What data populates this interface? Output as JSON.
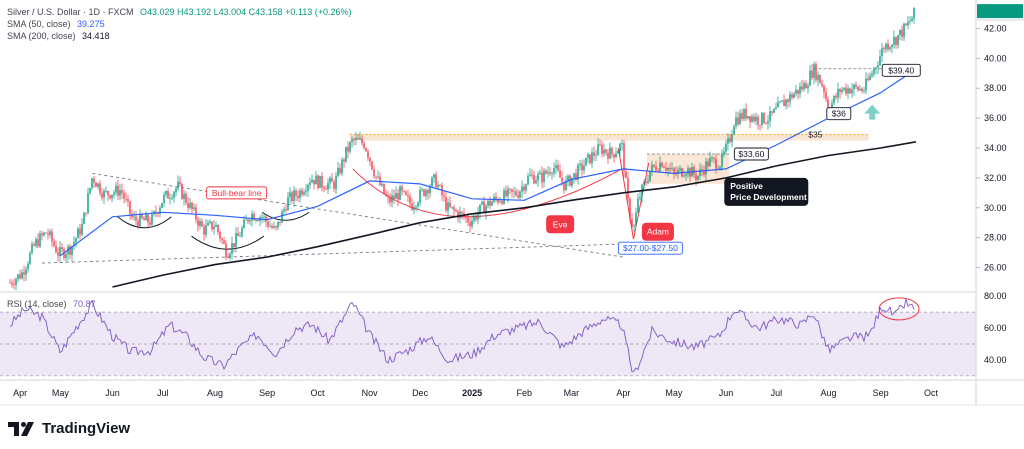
{
  "header": {
    "title": "Silver / U.S. Dollar · 1D · FXCM",
    "ohlc": "O43.029 H43.192 L43.004 C43.158 +0.113 (+0.26%)",
    "sma50_label": "SMA (50, close)",
    "sma50_value": "39.275",
    "sma200_label": "SMA (200, close)",
    "sma200_value": "34.418",
    "rsi_label": "RSI (14, close)",
    "rsi_value": "70.87"
  },
  "currency": "USD",
  "brand": "TradingView",
  "colors": {
    "sma50": "#2962ff",
    "sma200": "#131722",
    "up": "#089981",
    "down": "#f23645",
    "rsi_line": "#7e57c2",
    "rsi_band": "#ede7f6",
    "annotation_red": "#f23645",
    "annotation_blue": "#2962ff"
  },
  "chart_data": [
    {
      "type": "candlestick",
      "instrument": "Silver / U.S. Dollar",
      "interval": "1D",
      "x_labels": [
        "Apr",
        "May",
        "Jun",
        "Jul",
        "Aug",
        "Sep",
        "Oct",
        "Nov",
        "Dec",
        "2025",
        "Feb",
        "Mar",
        "Apr",
        "May",
        "Jun",
        "Jul",
        "Aug",
        "Sep",
        "Oct"
      ],
      "y_ticks": [
        26.0,
        28.0,
        30.0,
        32.0,
        34.0,
        36.0,
        38.0,
        40.0,
        42.0
      ],
      "ylim": [
        24.5,
        43.5
      ],
      "last_price": 43.158,
      "price_path": [
        {
          "t": "2024-04-01",
          "v": 25.0
        },
        {
          "t": "2024-04-08",
          "v": 25.6
        },
        {
          "t": "2024-04-16",
          "v": 27.6
        },
        {
          "t": "2024-04-23",
          "v": 28.4
        },
        {
          "t": "2024-04-30",
          "v": 26.9
        },
        {
          "t": "2024-05-07",
          "v": 27.3
        },
        {
          "t": "2024-05-14",
          "v": 28.8
        },
        {
          "t": "2024-05-20",
          "v": 32.1
        },
        {
          "t": "2024-05-27",
          "v": 30.9
        },
        {
          "t": "2024-06-06",
          "v": 31.2
        },
        {
          "t": "2024-06-13",
          "v": 29.2
        },
        {
          "t": "2024-06-24",
          "v": 29.1
        },
        {
          "t": "2024-07-01",
          "v": 30.6
        },
        {
          "t": "2024-07-10",
          "v": 31.4
        },
        {
          "t": "2024-07-17",
          "v": 30.1
        },
        {
          "t": "2024-07-25",
          "v": 28.5
        },
        {
          "t": "2024-08-01",
          "v": 28.9
        },
        {
          "t": "2024-08-08",
          "v": 27.0
        },
        {
          "t": "2024-08-15",
          "v": 28.1
        },
        {
          "t": "2024-08-22",
          "v": 29.6
        },
        {
          "t": "2024-08-29",
          "v": 29.4
        },
        {
          "t": "2024-09-06",
          "v": 28.4
        },
        {
          "t": "2024-09-13",
          "v": 30.5
        },
        {
          "t": "2024-09-20",
          "v": 31.0
        },
        {
          "t": "2024-09-27",
          "v": 32.0
        },
        {
          "t": "2024-10-04",
          "v": 31.6
        },
        {
          "t": "2024-10-11",
          "v": 31.6
        },
        {
          "t": "2024-10-18",
          "v": 33.7
        },
        {
          "t": "2024-10-22",
          "v": 34.5
        },
        {
          "t": "2024-10-29",
          "v": 34.3
        },
        {
          "t": "2024-11-05",
          "v": 32.0
        },
        {
          "t": "2024-11-12",
          "v": 30.4
        },
        {
          "t": "2024-11-19",
          "v": 31.0
        },
        {
          "t": "2024-11-26",
          "v": 30.2
        },
        {
          "t": "2024-12-03",
          "v": 31.1
        },
        {
          "t": "2024-12-10",
          "v": 31.9
        },
        {
          "t": "2024-12-17",
          "v": 30.0
        },
        {
          "t": "2024-12-24",
          "v": 29.6
        },
        {
          "t": "2024-12-31",
          "v": 29.1
        },
        {
          "t": "2025-01-07",
          "v": 30.0
        },
        {
          "t": "2025-01-14",
          "v": 30.5
        },
        {
          "t": "2025-01-21",
          "v": 30.8
        },
        {
          "t": "2025-01-28",
          "v": 31.0
        },
        {
          "t": "2025-02-04",
          "v": 32.1
        },
        {
          "t": "2025-02-11",
          "v": 32.0
        },
        {
          "t": "2025-02-18",
          "v": 32.8
        },
        {
          "t": "2025-02-25",
          "v": 31.5
        },
        {
          "t": "2025-03-04",
          "v": 32.3
        },
        {
          "t": "2025-03-11",
          "v": 33.2
        },
        {
          "t": "2025-03-18",
          "v": 34.0
        },
        {
          "t": "2025-03-25",
          "v": 33.6
        },
        {
          "t": "2025-03-31",
          "v": 34.2
        },
        {
          "t": "2025-04-04",
          "v": 30.0
        },
        {
          "t": "2025-04-07",
          "v": 28.5
        },
        {
          "t": "2025-04-10",
          "v": 30.6
        },
        {
          "t": "2025-04-17",
          "v": 32.5
        },
        {
          "t": "2025-04-24",
          "v": 33.1
        },
        {
          "t": "2025-05-01",
          "v": 32.2
        },
        {
          "t": "2025-05-08",
          "v": 32.6
        },
        {
          "t": "2025-05-15",
          "v": 32.1
        },
        {
          "t": "2025-05-22",
          "v": 33.1
        },
        {
          "t": "2025-05-29",
          "v": 33.0
        },
        {
          "t": "2025-06-03",
          "v": 34.5
        },
        {
          "t": "2025-06-06",
          "v": 35.9
        },
        {
          "t": "2025-06-13",
          "v": 36.3
        },
        {
          "t": "2025-06-20",
          "v": 35.9
        },
        {
          "t": "2025-06-27",
          "v": 36.0
        },
        {
          "t": "2025-07-04",
          "v": 36.9
        },
        {
          "t": "2025-07-11",
          "v": 37.6
        },
        {
          "t": "2025-07-18",
          "v": 38.2
        },
        {
          "t": "2025-07-23",
          "v": 39.3
        },
        {
          "t": "2025-07-29",
          "v": 38.1
        },
        {
          "t": "2025-08-01",
          "v": 36.6
        },
        {
          "t": "2025-08-08",
          "v": 37.9
        },
        {
          "t": "2025-08-15",
          "v": 38.0
        },
        {
          "t": "2025-08-22",
          "v": 37.9
        },
        {
          "t": "2025-08-29",
          "v": 39.5
        },
        {
          "t": "2025-09-03",
          "v": 40.8
        },
        {
          "t": "2025-09-10",
          "v": 41.3
        },
        {
          "t": "2025-09-17",
          "v": 42.2
        },
        {
          "t": "2025-09-22",
          "v": 43.16
        }
      ],
      "sma50": [
        {
          "t": "2024-05-01",
          "v": 26.8
        },
        {
          "t": "2024-06-01",
          "v": 29.4
        },
        {
          "t": "2024-07-01",
          "v": 29.7
        },
        {
          "t": "2024-08-01",
          "v": 29.5
        },
        {
          "t": "2024-09-01",
          "v": 29.2
        },
        {
          "t": "2024-10-01",
          "v": 30.1
        },
        {
          "t": "2024-11-01",
          "v": 31.8
        },
        {
          "t": "2024-12-01",
          "v": 31.6
        },
        {
          "t": "2025-01-01",
          "v": 30.6
        },
        {
          "t": "2025-02-01",
          "v": 30.5
        },
        {
          "t": "2025-03-01",
          "v": 31.9
        },
        {
          "t": "2025-04-01",
          "v": 32.6
        },
        {
          "t": "2025-05-01",
          "v": 32.3
        },
        {
          "t": "2025-06-01",
          "v": 32.6
        },
        {
          "t": "2025-07-01",
          "v": 34.2
        },
        {
          "t": "2025-08-01",
          "v": 36.0
        },
        {
          "t": "2025-09-01",
          "v": 37.7
        },
        {
          "t": "2025-09-22",
          "v": 39.275
        }
      ],
      "sma200": [
        {
          "t": "2024-06-01",
          "v": 24.7
        },
        {
          "t": "2024-07-01",
          "v": 25.5
        },
        {
          "t": "2024-08-01",
          "v": 26.2
        },
        {
          "t": "2024-09-01",
          "v": 26.7
        },
        {
          "t": "2024-10-01",
          "v": 27.4
        },
        {
          "t": "2024-11-01",
          "v": 28.2
        },
        {
          "t": "2024-12-01",
          "v": 29.0
        },
        {
          "t": "2025-01-01",
          "v": 29.6
        },
        {
          "t": "2025-02-01",
          "v": 30.0
        },
        {
          "t": "2025-03-01",
          "v": 30.5
        },
        {
          "t": "2025-04-01",
          "v": 31.0
        },
        {
          "t": "2025-05-01",
          "v": 31.4
        },
        {
          "t": "2025-06-01",
          "v": 32.0
        },
        {
          "t": "2025-07-01",
          "v": 32.8
        },
        {
          "t": "2025-08-01",
          "v": 33.5
        },
        {
          "t": "2025-09-01",
          "v": 34.0
        },
        {
          "t": "2025-09-22",
          "v": 34.418
        }
      ],
      "annotations": {
        "bull_bear_line": "Bull-bear line",
        "level_35": "$35",
        "level_3360": "$33.60",
        "level_36": "$36",
        "level_3940": "$39.40",
        "support_zone": "$27.00-$27.50",
        "eve": "Eve",
        "adam": "Adam",
        "positive_line1": "Positive",
        "positive_line2": "Price Development"
      }
    },
    {
      "type": "line",
      "name": "RSI (14, close)",
      "y_ticks": [
        40.0,
        60.0,
        80.0
      ],
      "ylim": [
        28,
        82
      ],
      "band": [
        30,
        70
      ],
      "last_value": 70.87,
      "path": [
        {
          "t": "2024-04-01",
          "v": 62
        },
        {
          "t": "2024-04-10",
          "v": 72
        },
        {
          "t": "2024-04-20",
          "v": 67
        },
        {
          "t": "2024-05-01",
          "v": 45
        },
        {
          "t": "2024-05-10",
          "v": 60
        },
        {
          "t": "2024-05-20",
          "v": 75
        },
        {
          "t": "2024-06-01",
          "v": 55
        },
        {
          "t": "2024-06-12",
          "v": 45
        },
        {
          "t": "2024-06-24",
          "v": 46
        },
        {
          "t": "2024-07-05",
          "v": 62
        },
        {
          "t": "2024-07-15",
          "v": 55
        },
        {
          "t": "2024-07-25",
          "v": 42
        },
        {
          "t": "2024-08-06",
          "v": 36
        },
        {
          "t": "2024-08-16",
          "v": 48
        },
        {
          "t": "2024-08-26",
          "v": 56
        },
        {
          "t": "2024-09-06",
          "v": 44
        },
        {
          "t": "2024-09-18",
          "v": 60
        },
        {
          "t": "2024-09-28",
          "v": 62
        },
        {
          "t": "2024-10-08",
          "v": 52
        },
        {
          "t": "2024-10-22",
          "v": 76
        },
        {
          "t": "2024-11-01",
          "v": 56
        },
        {
          "t": "2024-11-12",
          "v": 40
        },
        {
          "t": "2024-11-25",
          "v": 47
        },
        {
          "t": "2024-12-06",
          "v": 55
        },
        {
          "t": "2024-12-18",
          "v": 40
        },
        {
          "t": "2025-01-02",
          "v": 44
        },
        {
          "t": "2025-01-15",
          "v": 56
        },
        {
          "t": "2025-01-28",
          "v": 60
        },
        {
          "t": "2025-02-10",
          "v": 64
        },
        {
          "t": "2025-02-24",
          "v": 48
        },
        {
          "t": "2025-03-08",
          "v": 58
        },
        {
          "t": "2025-03-20",
          "v": 66
        },
        {
          "t": "2025-03-31",
          "v": 62
        },
        {
          "t": "2025-04-07",
          "v": 30
        },
        {
          "t": "2025-04-18",
          "v": 58
        },
        {
          "t": "2025-04-30",
          "v": 52
        },
        {
          "t": "2025-05-14",
          "v": 48
        },
        {
          "t": "2025-05-28",
          "v": 55
        },
        {
          "t": "2025-06-06",
          "v": 72
        },
        {
          "t": "2025-06-20",
          "v": 60
        },
        {
          "t": "2025-07-03",
          "v": 66
        },
        {
          "t": "2025-07-16",
          "v": 62
        },
        {
          "t": "2025-07-23",
          "v": 70
        },
        {
          "t": "2025-08-01",
          "v": 46
        },
        {
          "t": "2025-08-14",
          "v": 54
        },
        {
          "t": "2025-08-25",
          "v": 55
        },
        {
          "t": "2025-09-02",
          "v": 74
        },
        {
          "t": "2025-09-10",
          "v": 68
        },
        {
          "t": "2025-09-16",
          "v": 76
        },
        {
          "t": "2025-09-22",
          "v": 70.87
        }
      ]
    }
  ]
}
